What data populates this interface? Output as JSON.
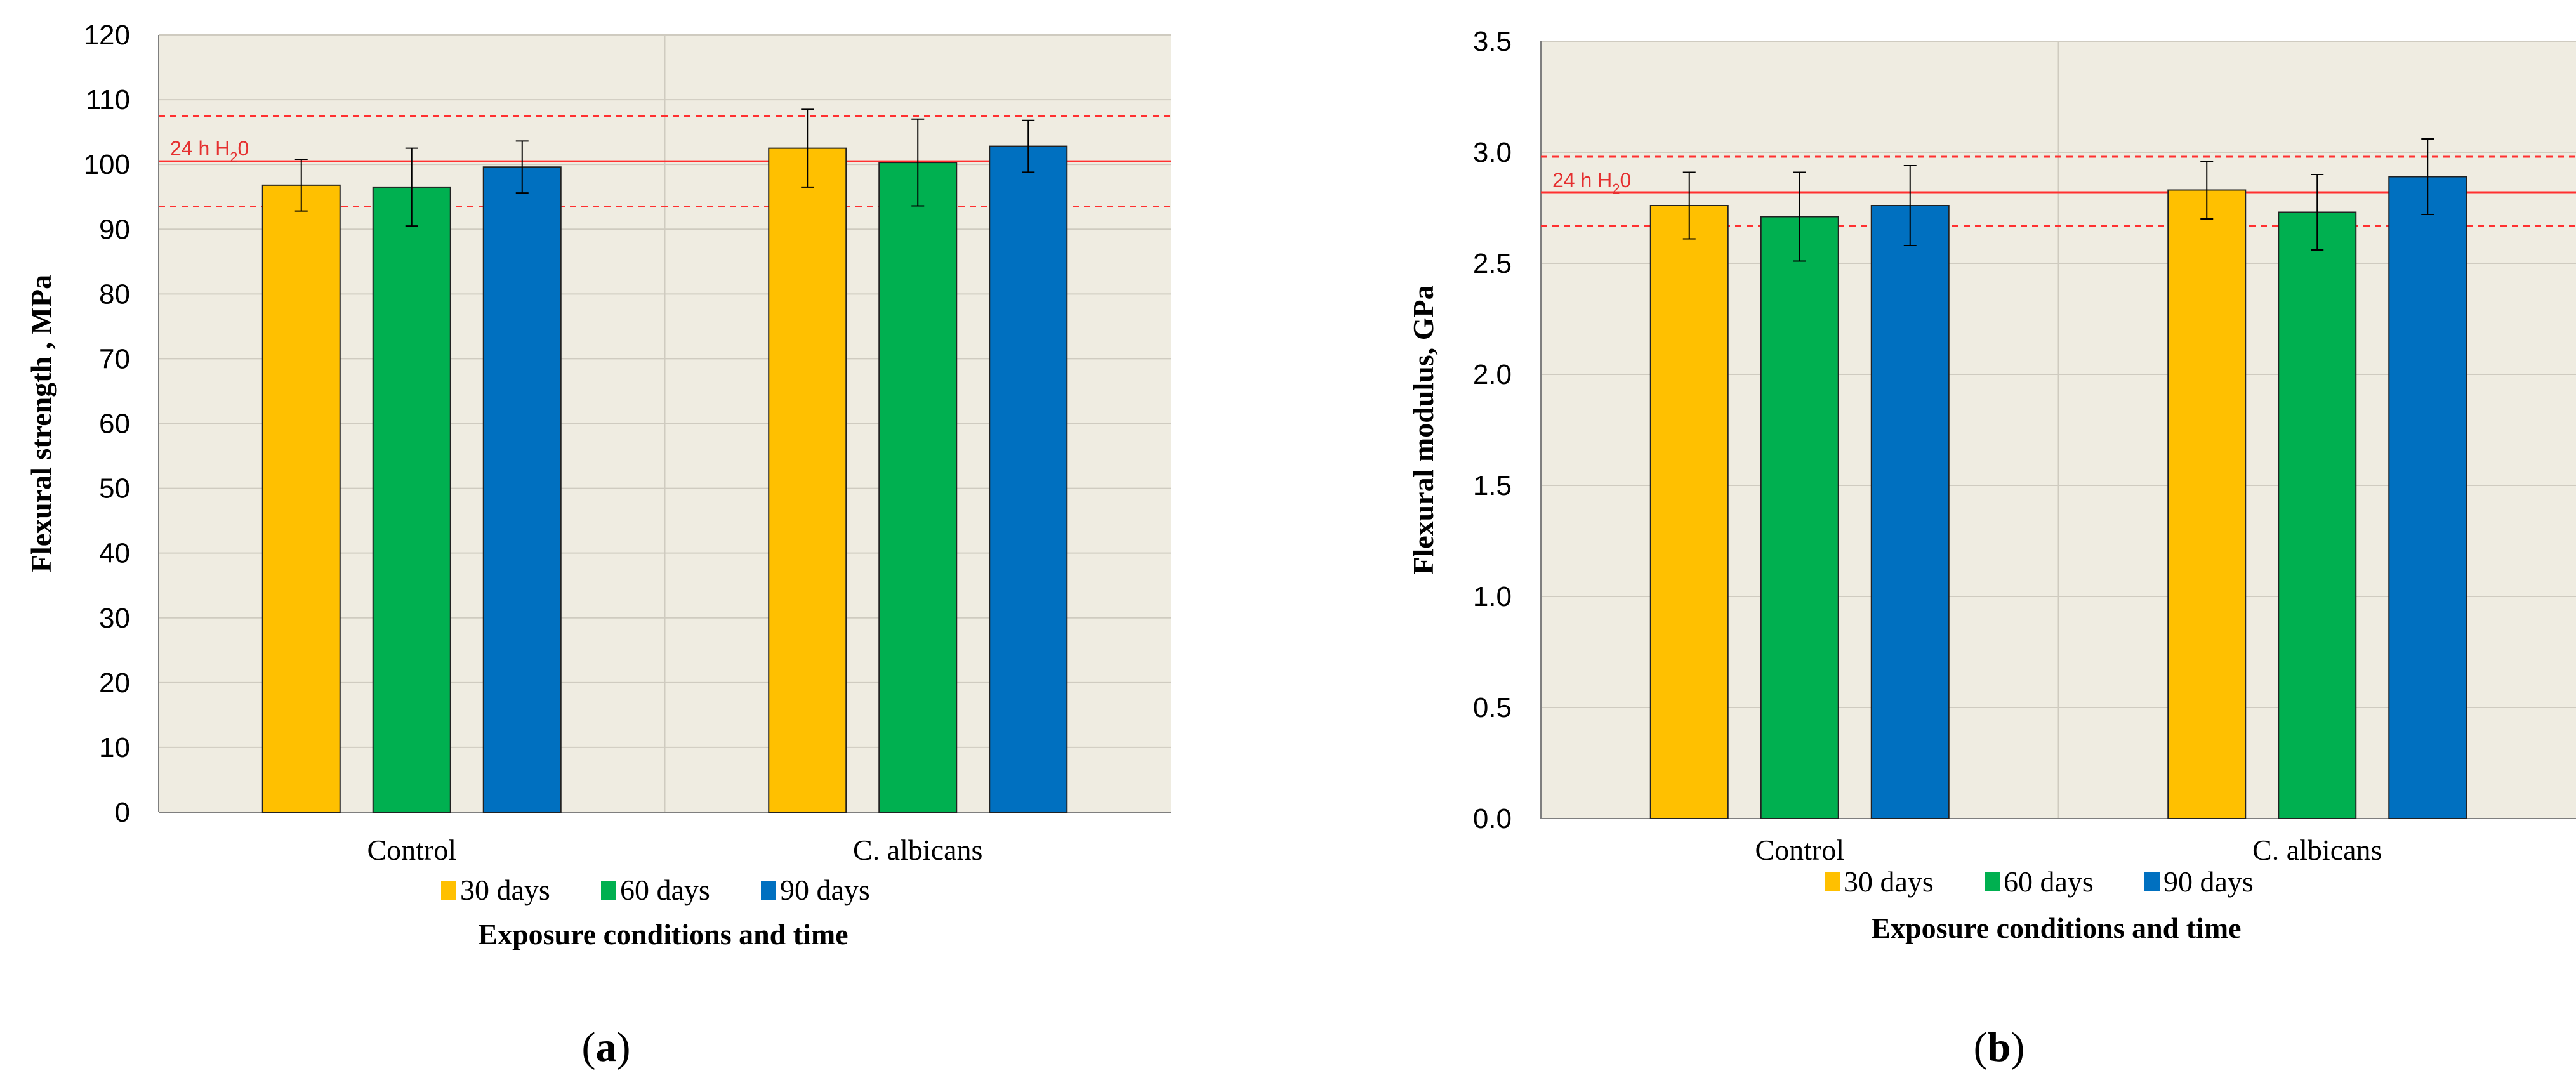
{
  "colors": {
    "plot_bg": "#efece1",
    "grid": "#cfcbc0",
    "axis": "#7f7f7f",
    "ref_line": "#ff3030",
    "ref_text": "#e53030",
    "error_bar": "#000000"
  },
  "legend": {
    "items": [
      {
        "label": "30 days",
        "color": "#ffc000"
      },
      {
        "label": "60 days",
        "color": "#00b050"
      },
      {
        "label": "90 days",
        "color": "#0070c0"
      }
    ]
  },
  "chart_data": [
    {
      "id": "a",
      "type": "bar",
      "panel_label": "(a)",
      "panel_letter": "a",
      "title": "",
      "xlabel": "Exposure conditions and time",
      "ylabel": "Flexural strength , MPa",
      "ylim": [
        0,
        120
      ],
      "yticks": [
        "0",
        "10",
        "20",
        "30",
        "40",
        "50",
        "60",
        "70",
        "80",
        "90",
        "100",
        "110",
        "120"
      ],
      "categories": [
        "Control",
        "C. albicans"
      ],
      "series": [
        {
          "name": "30 days",
          "color": "#ffc000",
          "values": [
            96.8,
            102.5
          ],
          "errors": [
            4,
            6
          ]
        },
        {
          "name": "60 days",
          "color": "#00b050",
          "values": [
            96.5,
            100.3
          ],
          "errors": [
            6,
            6.7
          ]
        },
        {
          "name": "90 days",
          "color": "#0070c0",
          "values": [
            99.6,
            102.8
          ],
          "errors": [
            4,
            4
          ]
        }
      ],
      "reference": {
        "label_main": "24 h H",
        "label_sub": "2",
        "label_end": "0",
        "value": 100.5,
        "upper": 107.5,
        "lower": 93.5
      }
    },
    {
      "id": "b",
      "type": "bar",
      "panel_label": "(b)",
      "panel_letter": "b",
      "title": "",
      "xlabel": "Exposure conditions and time",
      "ylabel": "Flexural modulus, GPa",
      "ylim": [
        0,
        3.5
      ],
      "yticks": [
        "0.0",
        "0.5",
        "1.0",
        "1.5",
        "2.0",
        "2.5",
        "3.0",
        "3.5"
      ],
      "categories": [
        "Control",
        "C. albicans"
      ],
      "series": [
        {
          "name": "30 days",
          "color": "#ffc000",
          "values": [
            2.76,
            2.83
          ],
          "errors": [
            0.15,
            0.13
          ]
        },
        {
          "name": "60 days",
          "color": "#00b050",
          "values": [
            2.71,
            2.73
          ],
          "errors": [
            0.2,
            0.17
          ]
        },
        {
          "name": "90 days",
          "color": "#0070c0",
          "values": [
            2.76,
            2.89
          ],
          "errors": [
            0.18,
            0.17
          ]
        }
      ],
      "reference": {
        "label_main": "24 h H",
        "label_sub": "2",
        "label_end": "0",
        "value": 2.82,
        "upper": 2.98,
        "lower": 2.67
      }
    }
  ]
}
